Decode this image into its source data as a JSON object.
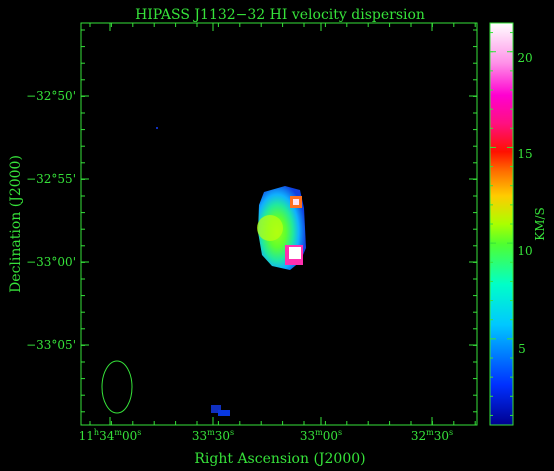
{
  "title": "HIPASS J1132−32   HI velocity dispersion",
  "x_axis": {
    "label": "Right Ascension (J2000)",
    "ticks": [
      {
        "h": "11",
        "hs": "h",
        "m": "34",
        "ms": "m",
        "s": "00",
        "ss": "s"
      },
      {
        "m": "33",
        "ms": "m",
        "s": "30",
        "ss": "s"
      },
      {
        "m": "33",
        "ms": "m",
        "s": "00",
        "ss": "s"
      },
      {
        "m": "32",
        "ms": "m",
        "s": "30",
        "ss": "s"
      }
    ]
  },
  "y_axis": {
    "label": "Declination (J2000)",
    "ticks": [
      "−32°50'",
      "−32°55'",
      "−33°00'",
      "−33°05'"
    ]
  },
  "colorbar": {
    "label": "KM/S",
    "ticks": [
      "20",
      "15",
      "10",
      "5"
    ],
    "range": [
      0.5,
      21.5
    ]
  },
  "colors": {
    "axis": "#36e23a",
    "background": "#000000",
    "beam": "#36e23a"
  }
}
